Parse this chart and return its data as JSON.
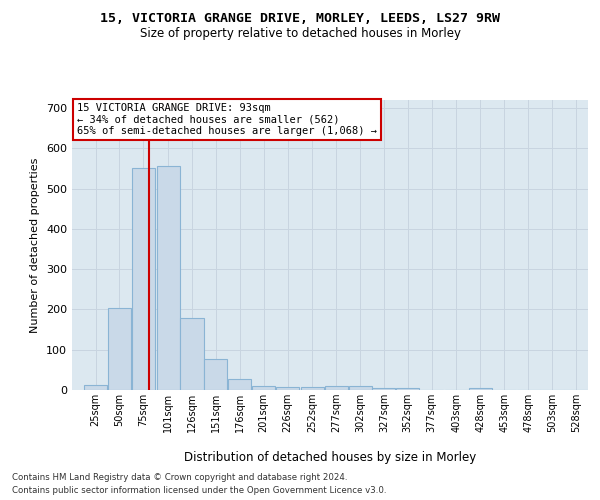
{
  "title1": "15, VICTORIA GRANGE DRIVE, MORLEY, LEEDS, LS27 9RW",
  "title2": "Size of property relative to detached houses in Morley",
  "xlabel": "Distribution of detached houses by size in Morley",
  "ylabel": "Number of detached properties",
  "bar_edges": [
    25,
    50,
    75,
    101,
    126,
    151,
    176,
    201,
    226,
    252,
    277,
    302,
    327,
    352,
    377,
    403,
    428,
    453,
    478,
    503,
    528
  ],
  "bar_heights": [
    12,
    204,
    551,
    557,
    178,
    78,
    27,
    11,
    8,
    7,
    9,
    9,
    6,
    5,
    0,
    0,
    5,
    0,
    0,
    0,
    0
  ],
  "bar_color": "#c9d9e8",
  "bar_edgecolor": "#8ab4d4",
  "bar_linewidth": 0.8,
  "vline_x": 93,
  "vline_color": "#cc0000",
  "ylim": [
    0,
    720
  ],
  "yticks": [
    0,
    100,
    200,
    300,
    400,
    500,
    600,
    700
  ],
  "grid_color": "#c8d4e0",
  "background_color": "#dce8f0",
  "annotation_text": "15 VICTORIA GRANGE DRIVE: 93sqm\n← 34% of detached houses are smaller (562)\n65% of semi-detached houses are larger (1,068) →",
  "annotation_box_color": "#ffffff",
  "annotation_border_color": "#cc0000",
  "footnote1": "Contains HM Land Registry data © Crown copyright and database right 2024.",
  "footnote2": "Contains public sector information licensed under the Open Government Licence v3.0.",
  "tick_labels": [
    "25sqm",
    "50sqm",
    "75sqm",
    "101sqm",
    "126sqm",
    "151sqm",
    "176sqm",
    "201sqm",
    "226sqm",
    "252sqm",
    "277sqm",
    "302sqm",
    "327sqm",
    "352sqm",
    "377sqm",
    "403sqm",
    "428sqm",
    "453sqm",
    "478sqm",
    "503sqm",
    "528sqm"
  ],
  "bar_width": 24.5,
  "fig_width": 6.0,
  "fig_height": 5.0,
  "dpi": 100
}
